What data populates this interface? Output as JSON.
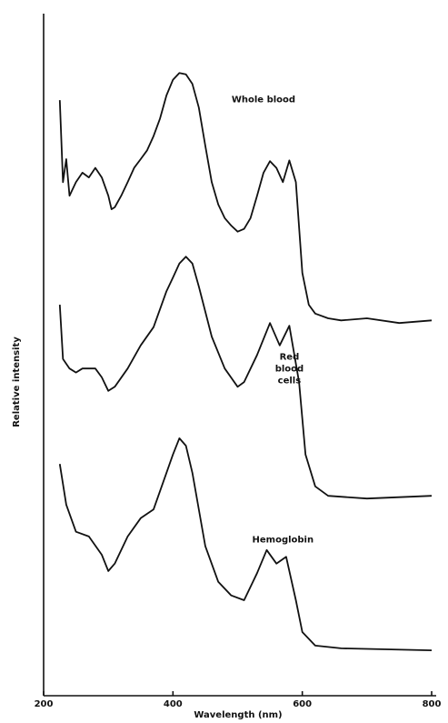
{
  "chart_data": {
    "type": "line",
    "xlabel": "Wavelength (nm)",
    "ylabel": "Relative intensity",
    "xlim": [
      200,
      800
    ],
    "xticks": [
      200,
      400,
      600,
      800
    ],
    "ylim": [
      0,
      100
    ],
    "color": "#111111",
    "series": [
      {
        "x": [
          225,
          230,
          235,
          240,
          250,
          260,
          270,
          280,
          290,
          300,
          305,
          310,
          320,
          330,
          340,
          350,
          360,
          370,
          380,
          390,
          400,
          410,
          420,
          430,
          440,
          450,
          460,
          470,
          480,
          490,
          500,
          510,
          520,
          530,
          540,
          550,
          560,
          570,
          580,
          590,
          600,
          610,
          620,
          640,
          660,
          700,
          750,
          800
        ],
        "values": [
          87.9,
          75.8,
          79.2,
          73.8,
          75.8,
          77.2,
          76.5,
          77.9,
          76.5,
          73.8,
          71.8,
          72.1,
          73.8,
          75.8,
          77.9,
          79.2,
          80.5,
          82.6,
          85.2,
          88.6,
          90.9,
          91.9,
          91.7,
          90.3,
          86.8,
          81.2,
          75.8,
          72.5,
          70.5,
          69.4,
          68.5,
          68.9,
          70.5,
          73.8,
          77.2,
          78.9,
          77.9,
          75.8,
          79.0,
          75.8,
          62.4,
          57.7,
          56.4,
          55.7,
          55.4,
          55.7,
          55.0,
          55.4
        ]
      },
      {
        "x": [
          225,
          230,
          240,
          250,
          260,
          280,
          290,
          300,
          310,
          330,
          350,
          370,
          390,
          400,
          410,
          420,
          430,
          440,
          460,
          480,
          500,
          510,
          530,
          550,
          565,
          580,
          595,
          605,
          620,
          640,
          700,
          800
        ],
        "values": [
          57.7,
          49.7,
          48.3,
          47.7,
          48.3,
          48.3,
          47.0,
          45.0,
          45.6,
          48.3,
          51.7,
          54.4,
          59.7,
          61.7,
          63.8,
          64.8,
          63.8,
          60.4,
          53.0,
          48.3,
          45.6,
          46.3,
          50.3,
          55.0,
          51.7,
          54.6,
          46.3,
          35.6,
          30.9,
          29.5,
          29.1,
          29.5
        ]
      },
      {
        "x": [
          225,
          235,
          250,
          270,
          290,
          300,
          310,
          330,
          350,
          370,
          390,
          400,
          410,
          420,
          430,
          450,
          470,
          490,
          510,
          530,
          545,
          560,
          575,
          590,
          600,
          620,
          660,
          800
        ],
        "values": [
          34.2,
          28.2,
          24.2,
          23.5,
          20.8,
          18.4,
          19.5,
          23.5,
          26.2,
          27.5,
          32.9,
          35.6,
          38.0,
          36.9,
          32.9,
          22.1,
          16.8,
          14.8,
          14.1,
          18.1,
          21.5,
          19.5,
          20.5,
          14.1,
          9.4,
          7.4,
          7.0,
          6.7
        ]
      }
    ],
    "annotations": [
      {
        "lines": [
          "Whole blood"
        ],
        "x": 540,
        "y": 88
      },
      {
        "lines": [
          "Red",
          "blood",
          "cells"
        ],
        "x": 580,
        "y": 50
      },
      {
        "lines": [
          "Hemoglobin"
        ],
        "x": 570,
        "y": 23
      }
    ]
  }
}
